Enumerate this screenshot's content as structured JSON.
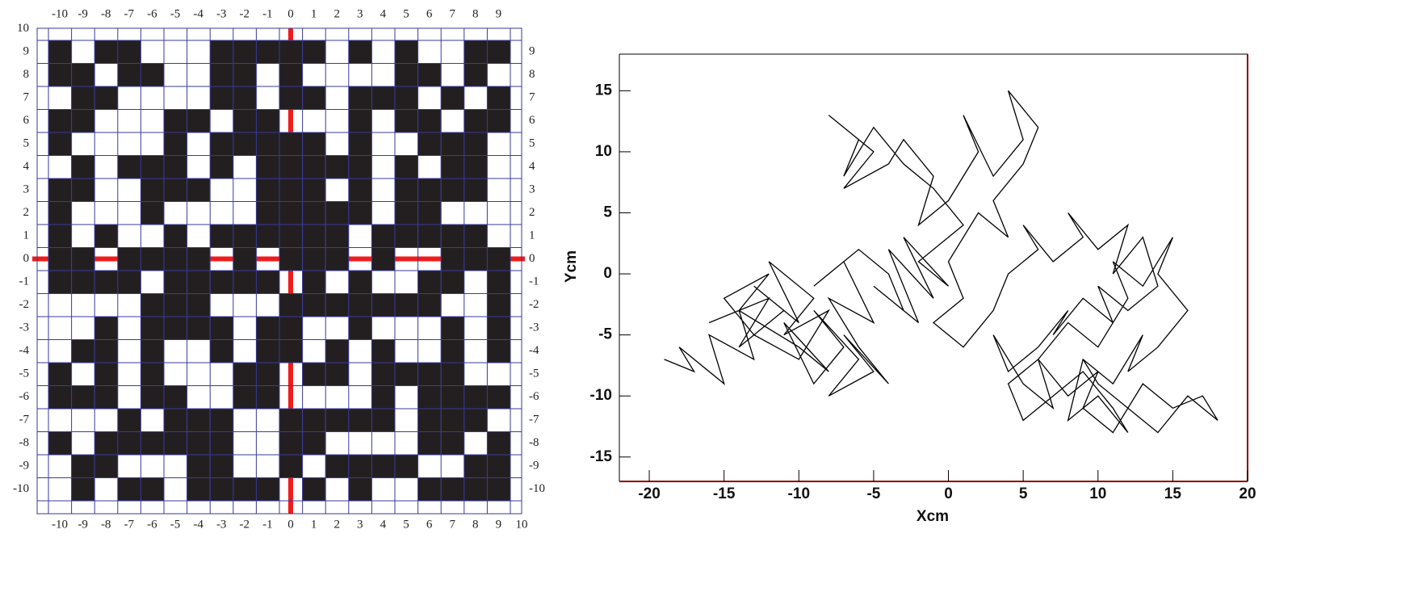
{
  "chart_data": [
    {
      "type": "lattice",
      "xticks_top": [
        -10,
        -9,
        -8,
        -7,
        -6,
        -5,
        -4,
        -3,
        -2,
        -1,
        0,
        1,
        2,
        3,
        4,
        5,
        6,
        7,
        8,
        9
      ],
      "xticks_bottom": [
        -10,
        -9,
        -8,
        -7,
        -6,
        -5,
        -4,
        -3,
        -2,
        -1,
        0,
        1,
        2,
        3,
        4,
        5,
        6,
        7,
        8,
        9,
        10
      ],
      "yticks_left": [
        10,
        9,
        8,
        7,
        6,
        5,
        4,
        3,
        2,
        1,
        0,
        -1,
        -2,
        -3,
        -4,
        -5,
        -6,
        -7,
        -8,
        -9,
        -10
      ],
      "yticks_right": [
        9,
        8,
        7,
        6,
        5,
        4,
        3,
        2,
        1,
        0,
        -1,
        -2,
        -3,
        -4,
        -5,
        -6,
        -7,
        -8,
        -9,
        -10
      ],
      "cell_color": "#231f20",
      "grid_color": "#3a3a9a",
      "axis_line_color": "#ee1c1c",
      "cells": [
        [
          1,
          0,
          1,
          1,
          0,
          0,
          0,
          1,
          1,
          1,
          1,
          1,
          0,
          1,
          0,
          1,
          0,
          0,
          1,
          1
        ],
        [
          1,
          1,
          0,
          1,
          1,
          0,
          0,
          1,
          1,
          0,
          1,
          0,
          0,
          0,
          0,
          1,
          1,
          0,
          1,
          0
        ],
        [
          0,
          1,
          1,
          0,
          0,
          0,
          0,
          1,
          1,
          0,
          1,
          1,
          0,
          1,
          1,
          1,
          0,
          1,
          0,
          1
        ],
        [
          1,
          1,
          0,
          0,
          0,
          1,
          1,
          0,
          1,
          1,
          0,
          0,
          0,
          1,
          0,
          1,
          1,
          0,
          1,
          1
        ],
        [
          1,
          0,
          0,
          0,
          0,
          1,
          0,
          1,
          1,
          1,
          1,
          1,
          0,
          1,
          0,
          0,
          1,
          1,
          1,
          0
        ],
        [
          0,
          1,
          0,
          1,
          1,
          1,
          0,
          1,
          0,
          1,
          1,
          1,
          1,
          1,
          0,
          1,
          0,
          1,
          1,
          0
        ],
        [
          1,
          1,
          0,
          0,
          1,
          1,
          1,
          0,
          0,
          1,
          1,
          1,
          0,
          1,
          0,
          1,
          1,
          1,
          1,
          0
        ],
        [
          1,
          0,
          0,
          0,
          1,
          0,
          0,
          0,
          0,
          1,
          1,
          1,
          1,
          1,
          0,
          1,
          1,
          0,
          0,
          0
        ],
        [
          1,
          0,
          1,
          0,
          0,
          1,
          0,
          1,
          1,
          1,
          1,
          1,
          1,
          0,
          1,
          1,
          1,
          1,
          1,
          0
        ],
        [
          1,
          1,
          0,
          1,
          1,
          1,
          1,
          0,
          1,
          0,
          1,
          1,
          1,
          0,
          1,
          0,
          0,
          1,
          1,
          1
        ],
        [
          1,
          1,
          1,
          1,
          0,
          1,
          1,
          1,
          1,
          1,
          0,
          1,
          0,
          1,
          0,
          0,
          1,
          1,
          0,
          1
        ],
        [
          0,
          0,
          0,
          0,
          1,
          1,
          1,
          0,
          0,
          0,
          1,
          1,
          1,
          1,
          1,
          1,
          1,
          0,
          0,
          1
        ],
        [
          0,
          0,
          1,
          0,
          1,
          1,
          1,
          1,
          0,
          1,
          1,
          0,
          0,
          1,
          0,
          0,
          0,
          1,
          0,
          1
        ],
        [
          0,
          1,
          1,
          0,
          1,
          0,
          0,
          1,
          0,
          1,
          1,
          0,
          1,
          0,
          1,
          0,
          0,
          1,
          0,
          1
        ],
        [
          1,
          0,
          1,
          0,
          1,
          0,
          0,
          0,
          1,
          1,
          0,
          1,
          1,
          0,
          1,
          1,
          1,
          1,
          0,
          0
        ],
        [
          1,
          1,
          1,
          0,
          1,
          1,
          0,
          0,
          1,
          1,
          0,
          0,
          0,
          0,
          1,
          0,
          1,
          1,
          1,
          1
        ],
        [
          0,
          0,
          0,
          1,
          0,
          1,
          1,
          1,
          0,
          0,
          1,
          1,
          1,
          1,
          1,
          0,
          1,
          1,
          1,
          0
        ],
        [
          1,
          0,
          1,
          1,
          1,
          1,
          1,
          1,
          0,
          0,
          1,
          1,
          0,
          0,
          0,
          0,
          1,
          1,
          0,
          1
        ],
        [
          0,
          1,
          1,
          0,
          0,
          0,
          1,
          1,
          0,
          0,
          1,
          0,
          1,
          1,
          1,
          1,
          0,
          0,
          1,
          1
        ],
        [
          0,
          1,
          0,
          1,
          1,
          0,
          1,
          1,
          1,
          1,
          0,
          1,
          0,
          1,
          0,
          0,
          1,
          1,
          1,
          1
        ]
      ]
    },
    {
      "type": "line",
      "xlabel": "Xcm",
      "ylabel": "Ycm",
      "color": "#000000",
      "xlim": [
        -22,
        20
      ],
      "ylim": [
        -17,
        18
      ],
      "xticks": [
        -20,
        -15,
        -10,
        -5,
        0,
        5,
        10,
        15,
        20
      ],
      "yticks": [
        -15,
        -10,
        -5,
        0,
        5,
        10,
        15
      ],
      "x": [
        -19,
        -17,
        -18,
        -15,
        -16,
        -13,
        -14,
        -16,
        -12,
        -14,
        -11,
        -13,
        -10,
        -12,
        -9,
        -11,
        -8,
        -10,
        -13,
        -15,
        -12,
        -14,
        -10,
        -8,
        -11,
        -9,
        -7,
        -9,
        -6,
        -8,
        -5,
        -7,
        -4,
        -6,
        -8,
        -5,
        -7,
        -9,
        -6,
        -4,
        -3,
        -5,
        -2,
        -4,
        -1,
        -3,
        0,
        -2,
        1,
        -1,
        -3,
        -5,
        -7,
        -6,
        -8,
        -5,
        -7,
        -4,
        -3,
        -1,
        -2,
        0,
        2,
        1,
        3,
        5,
        4,
        6,
        5,
        3,
        4,
        2,
        0,
        1,
        -1,
        1,
        3,
        4,
        6,
        5,
        7,
        9,
        8,
        10,
        12,
        11,
        13,
        14,
        12,
        10,
        11,
        9,
        7,
        8,
        6,
        4,
        3,
        5,
        7,
        6,
        8,
        10,
        12,
        11,
        13,
        15,
        14,
        16,
        14,
        12,
        13,
        11,
        9,
        8,
        10,
        12,
        11,
        9,
        7,
        5,
        4,
        6,
        8,
        10,
        9,
        11,
        13,
        15,
        17,
        18,
        16,
        14,
        12,
        10,
        9
      ],
      "y": [
        -7,
        -8,
        -6,
        -9,
        -5,
        -7,
        -3,
        -4,
        -2,
        -6,
        -3,
        -1,
        -4,
        1,
        -2,
        -5,
        -3,
        -7,
        -5,
        -2,
        0,
        -3,
        -6,
        -8,
        -4,
        -9,
        -6,
        -3,
        -7,
        -10,
        -8,
        -5,
        -9,
        -6,
        -2,
        -4,
        1,
        -1,
        2,
        0,
        -3,
        -1,
        -4,
        2,
        -2,
        3,
        -1,
        1,
        4,
        7,
        9,
        12,
        8,
        11,
        13,
        10,
        7,
        9,
        11,
        8,
        4,
        6,
        10,
        13,
        8,
        11,
        15,
        12,
        9,
        6,
        3,
        5,
        1,
        -2,
        -4,
        -6,
        -3,
        0,
        2,
        4,
        1,
        3,
        5,
        2,
        4,
        0,
        3,
        -1,
        -3,
        -1,
        -4,
        -2,
        -5,
        -3,
        -6,
        -8,
        -5,
        -9,
        -11,
        -7,
        -4,
        -6,
        -2,
        1,
        -1,
        3,
        0,
        -3,
        -6,
        -8,
        -5,
        -9,
        -7,
        -12,
        -10,
        -13,
        -11,
        -8,
        -10,
        -12,
        -9,
        -7,
        -10,
        -8,
        -11,
        -13,
        -9,
        -11,
        -10,
        -12,
        -10,
        -13,
        -11,
        -9,
        -7
      ]
    }
  ]
}
